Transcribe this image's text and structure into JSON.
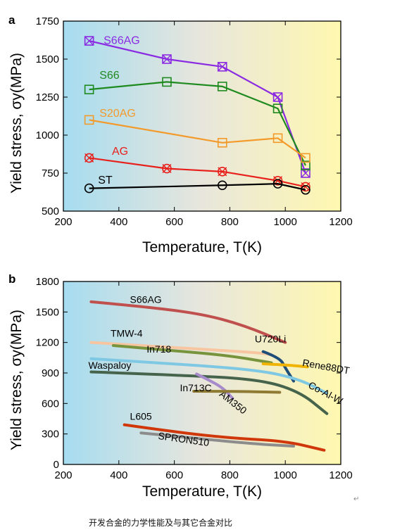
{
  "caption": "开发合金的力学性能及与其它合金对比",
  "return_mark": "↵",
  "chart_data": [
    {
      "type": "line",
      "panel_label": "a",
      "xlabel": "Temperature, T(K)",
      "ylabel": "Yield stress, σy(MPa)",
      "xlim": [
        200,
        1200
      ],
      "ylim": [
        500,
        1750
      ],
      "xticks": [
        200,
        400,
        600,
        800,
        1000,
        1200
      ],
      "yticks": [
        500,
        750,
        1000,
        1250,
        1500,
        1750
      ],
      "background": "blue-to-yellow horizontal gradient",
      "series": [
        {
          "name": "S66AG",
          "color": "#8a2be2",
          "marker": "box-x",
          "x": [
            293,
            573,
            773,
            973,
            1073
          ],
          "y": [
            1620,
            1500,
            1450,
            1250,
            750
          ]
        },
        {
          "name": "S66",
          "color": "#1f8a1f",
          "marker": "square",
          "x": [
            293,
            573,
            773,
            973,
            1073
          ],
          "y": [
            1300,
            1350,
            1320,
            1175,
            800
          ]
        },
        {
          "name": "S20AG",
          "color": "#f39a2b",
          "marker": "square",
          "x": [
            293,
            773,
            973,
            1073
          ],
          "y": [
            1100,
            950,
            980,
            850
          ]
        },
        {
          "name": "AG",
          "color": "#e8201c",
          "marker": "circle-x",
          "x": [
            293,
            573,
            773,
            973,
            1073
          ],
          "y": [
            850,
            780,
            760,
            700,
            660
          ]
        },
        {
          "name": "ST",
          "color": "#000000",
          "marker": "circle",
          "x": [
            293,
            773,
            973,
            1073
          ],
          "y": [
            650,
            670,
            680,
            640
          ]
        }
      ]
    },
    {
      "type": "line",
      "panel_label": "b",
      "xlabel": "Temperature, T(K)",
      "ylabel": "Yield stress, σy(MPa)",
      "xlim": [
        200,
        1200
      ],
      "ylim": [
        0,
        1800
      ],
      "xticks": [
        200,
        400,
        600,
        800,
        1000,
        1200
      ],
      "yticks": [
        0,
        300,
        600,
        900,
        1200,
        1500,
        1800
      ],
      "background": "blue-to-yellow horizontal gradient",
      "series": [
        {
          "name": "S66AG",
          "color": "#c0504d",
          "x": [
            300,
            500,
            700,
            850,
            1000
          ],
          "y": [
            1600,
            1550,
            1480,
            1370,
            1200
          ]
        },
        {
          "name": "TMW-4",
          "color": "#f7c59f",
          "x": [
            300,
            600,
            900,
            950
          ],
          "y": [
            1200,
            1150,
            1100,
            1080
          ]
        },
        {
          "name": "In718",
          "color": "#77933c",
          "x": [
            380,
            600,
            800,
            950
          ],
          "y": [
            1170,
            1120,
            1070,
            1000
          ]
        },
        {
          "name": "U720Li",
          "color": "#1f4e79",
          "x": [
            920,
            980,
            1000,
            1030
          ],
          "y": [
            1110,
            1050,
            950,
            820
          ]
        },
        {
          "name": "Rene88DT",
          "color": "#f0b400",
          "x": [
            920,
            1000,
            1080
          ],
          "y": [
            990,
            980,
            960
          ]
        },
        {
          "name": "Co-Al-W",
          "color": "#7ec8e3",
          "x": [
            300,
            600,
            900,
            1050,
            1150
          ],
          "y": [
            1040,
            990,
            930,
            840,
            700
          ]
        },
        {
          "name": "Waspaloy",
          "color": "#46634c",
          "x": [
            300,
            600,
            900,
            1050,
            1150
          ],
          "y": [
            910,
            880,
            840,
            720,
            500
          ]
        },
        {
          "name": "AM350",
          "color": "#a78bcc",
          "x": [
            680,
            740,
            780,
            810
          ],
          "y": [
            890,
            810,
            740,
            650
          ]
        },
        {
          "name": "In713C",
          "color": "#8f7a33",
          "x": [
            670,
            800,
            980
          ],
          "y": [
            720,
            720,
            710
          ]
        },
        {
          "name": "L605",
          "color": "#d0380c",
          "x": [
            420,
            600,
            800,
            1000,
            1140
          ],
          "y": [
            390,
            320,
            260,
            230,
            140
          ]
        },
        {
          "name": "SPRON510",
          "color": "#8c8c8c",
          "x": [
            480,
            700,
            900,
            1030
          ],
          "y": [
            310,
            250,
            200,
            180
          ]
        }
      ]
    }
  ]
}
